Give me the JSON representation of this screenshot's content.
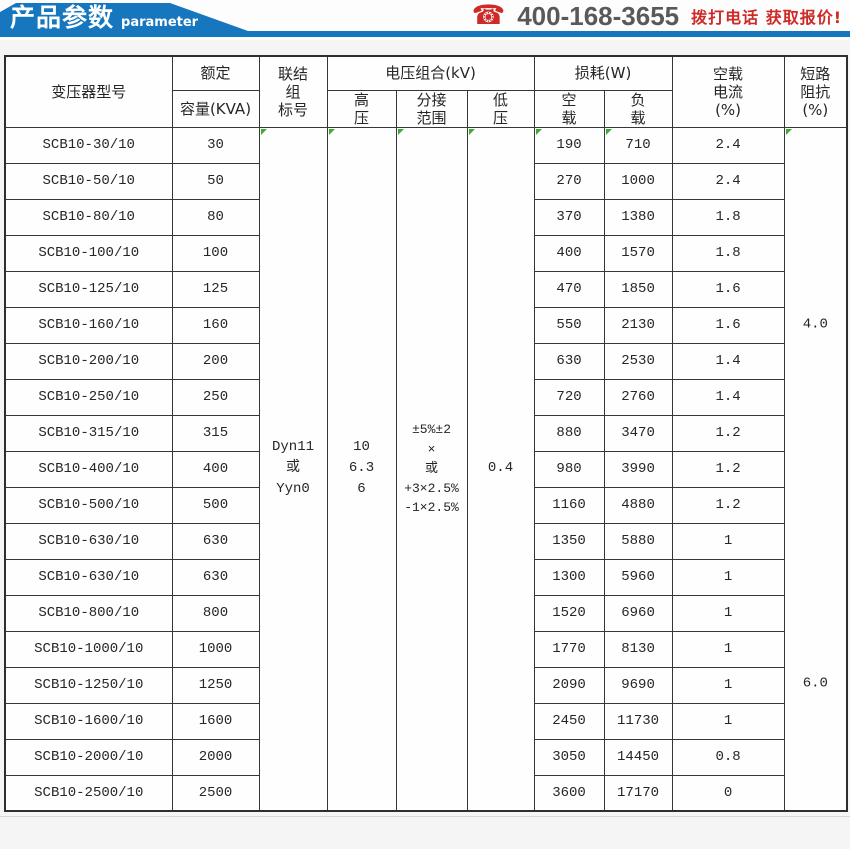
{
  "colors": {
    "banner-blue": "#1677bf",
    "accent-red": "#ce2a28",
    "phone-gray": "#58595b",
    "border-dark": "#363636",
    "tick-green": "#3faa36",
    "page-bg": "#f5f5f5"
  },
  "banner": {
    "title": "产品参数",
    "subtitle": "parameter",
    "phone_icon": "phone-icon",
    "phone": "400-168-3655",
    "cta": "拨打电话 获取报价!"
  },
  "table": {
    "headers": {
      "model": "变压器型号",
      "rated": "额定",
      "capacity": "容量(KVA)",
      "connection": [
        "联结",
        "组",
        "标号"
      ],
      "voltage_group": "电压组合(kV)",
      "hv": [
        "高",
        "压"
      ],
      "tap": [
        "分接",
        "范围"
      ],
      "lv": [
        "低",
        "压"
      ],
      "loss": "损耗(W)",
      "no_load": [
        "空",
        "载"
      ],
      "load": [
        "负",
        "载"
      ],
      "no_load_current": [
        "空载",
        "电流",
        "(%)"
      ],
      "impedance": [
        "短路",
        "阻抗",
        "(%)"
      ]
    },
    "merged": {
      "connection": [
        "Dyn11",
        "或",
        "Yyn0"
      ],
      "hv": [
        "10",
        "6.3",
        "6"
      ],
      "tap": [
        "±5%±2",
        "×",
        "或",
        "+3×2.5%",
        "-1×2.5%"
      ],
      "lv": "0.4",
      "impedance_values": [
        "4.0",
        "6.0"
      ]
    },
    "rows": [
      {
        "model": "SCB10-30/10",
        "capacity": "30",
        "no_load": "190",
        "load": "710",
        "current": "2.4"
      },
      {
        "model": "SCB10-50/10",
        "capacity": "50",
        "no_load": "270",
        "load": "1000",
        "current": "2.4"
      },
      {
        "model": "SCB10-80/10",
        "capacity": "80",
        "no_load": "370",
        "load": "1380",
        "current": "1.8"
      },
      {
        "model": "SCB10-100/10",
        "capacity": "100",
        "no_load": "400",
        "load": "1570",
        "current": "1.8"
      },
      {
        "model": "SCB10-125/10",
        "capacity": "125",
        "no_load": "470",
        "load": "1850",
        "current": "1.6"
      },
      {
        "model": "SCB10-160/10",
        "capacity": "160",
        "no_load": "550",
        "load": "2130",
        "current": "1.6"
      },
      {
        "model": "SCB10-200/10",
        "capacity": "200",
        "no_load": "630",
        "load": "2530",
        "current": "1.4"
      },
      {
        "model": "SCB10-250/10",
        "capacity": "250",
        "no_load": "720",
        "load": "2760",
        "current": "1.4"
      },
      {
        "model": "SCB10-315/10",
        "capacity": "315",
        "no_load": "880",
        "load": "3470",
        "current": "1.2"
      },
      {
        "model": "SCB10-400/10",
        "capacity": "400",
        "no_load": "980",
        "load": "3990",
        "current": "1.2"
      },
      {
        "model": "SCB10-500/10",
        "capacity": "500",
        "no_load": "1160",
        "load": "4880",
        "current": "1.2"
      },
      {
        "model": "SCB10-630/10",
        "capacity": "630",
        "no_load": "1350",
        "load": "5880",
        "current": "1"
      },
      {
        "model": "SCB10-630/10",
        "capacity": "630",
        "no_load": "1300",
        "load": "5960",
        "current": "1"
      },
      {
        "model": "SCB10-800/10",
        "capacity": "800",
        "no_load": "1520",
        "load": "6960",
        "current": "1"
      },
      {
        "model": "SCB10-1000/10",
        "capacity": "1000",
        "no_load": "1770",
        "load": "8130",
        "current": "1"
      },
      {
        "model": "SCB10-1250/10",
        "capacity": "1250",
        "no_load": "2090",
        "load": "9690",
        "current": "1"
      },
      {
        "model": "SCB10-1600/10",
        "capacity": "1600",
        "no_load": "2450",
        "load": "11730",
        "current": "1"
      },
      {
        "model": "SCB10-2000/10",
        "capacity": "2000",
        "no_load": "3050",
        "load": "14450",
        "current": "0.8"
      },
      {
        "model": "SCB10-2500/10",
        "capacity": "2500",
        "no_load": "3600",
        "load": "17170",
        "current": "0"
      }
    ]
  }
}
